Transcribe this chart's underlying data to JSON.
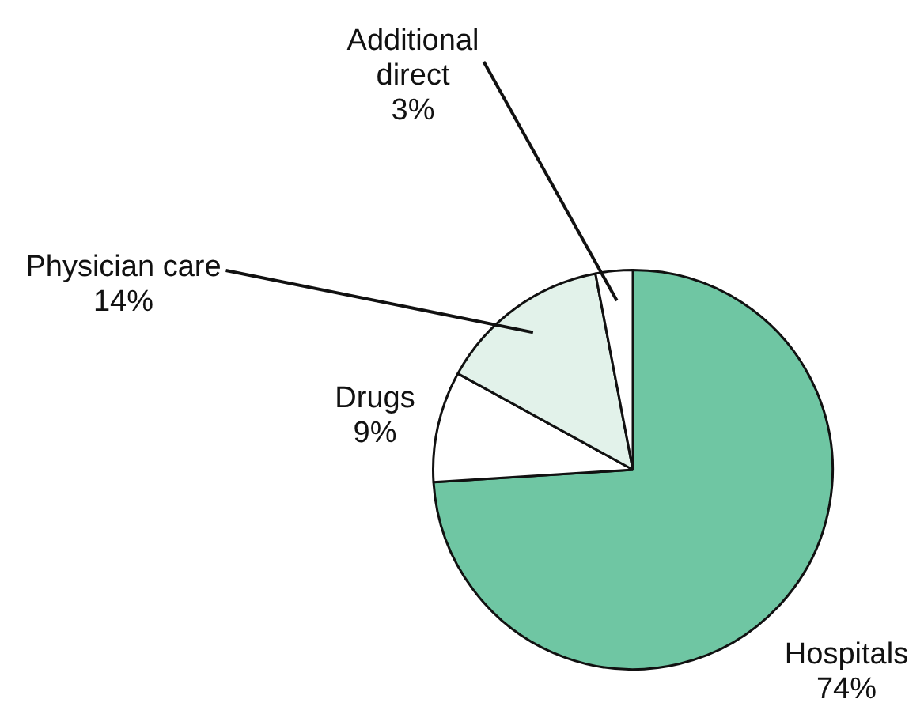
{
  "chart_data": {
    "type": "pie",
    "categories": [
      "Hospitals",
      "Drugs",
      "Physician care",
      "Additional direct"
    ],
    "values": [
      74,
      9,
      14,
      3
    ],
    "colors": [
      "#6fc6a3",
      "#ffffff",
      "#e2f2ea",
      "#ffffff"
    ],
    "value_labels": [
      "74%",
      "9%",
      "14%",
      "3%"
    ],
    "legend": false
  }
}
